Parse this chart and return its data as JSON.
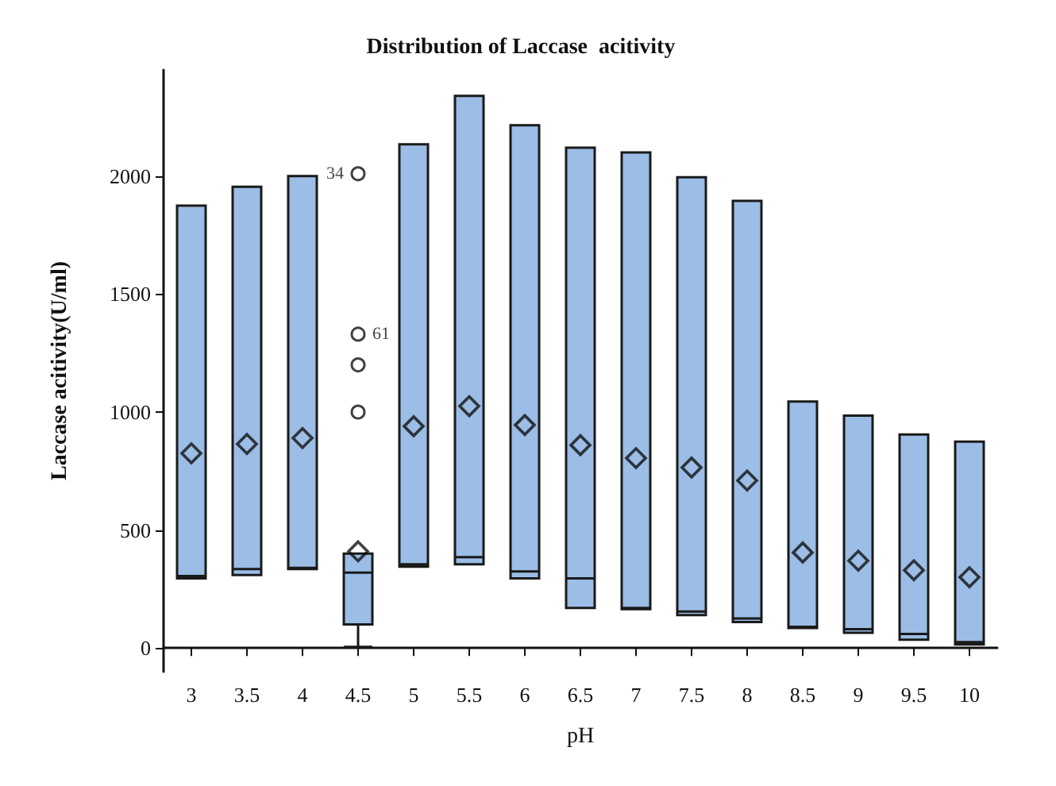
{
  "chart_data": {
    "type": "box",
    "title": "Distribution of Laccase  acitivity",
    "xlabel": "pH",
    "ylabel": "Laccase acitivity(U/ml)",
    "categories": [
      "3",
      "3.5",
      "4",
      "4.5",
      "5",
      "5.5",
      "6",
      "6.5",
      "7",
      "7.5",
      "8",
      "8.5",
      "9",
      "9.5",
      "10"
    ],
    "color": "#9bbde6",
    "marker": "diamond",
    "grid": false,
    "legend": false,
    "ylim": [
      -100,
      2450
    ],
    "yticks": [
      0,
      500,
      1000,
      1500,
      2000
    ],
    "boxes": [
      {
        "low": 295,
        "q1": 295,
        "median": 305,
        "q3": 1875,
        "high": 1875,
        "mean": 825
      },
      {
        "low": 310,
        "q1": 310,
        "median": 335,
        "q3": 1955,
        "high": 1955,
        "mean": 865
      },
      {
        "low": 335,
        "q1": 335,
        "median": 340,
        "q3": 2000,
        "high": 2000,
        "mean": 890
      },
      {
        "low": 5,
        "q1": 100,
        "median": 320,
        "q3": 400,
        "high": 400,
        "mean": 410,
        "outliers": [
          1000,
          1200,
          1330,
          2010
        ]
      },
      {
        "low": 345,
        "q1": 345,
        "median": 355,
        "q3": 2135,
        "high": 2135,
        "mean": 940
      },
      {
        "low": 355,
        "q1": 355,
        "median": 385,
        "q3": 2340,
        "high": 2340,
        "mean": 1025
      },
      {
        "low": 295,
        "q1": 295,
        "median": 325,
        "q3": 2215,
        "high": 2215,
        "mean": 945
      },
      {
        "low": 170,
        "q1": 170,
        "median": 295,
        "q3": 2120,
        "high": 2120,
        "mean": 860
      },
      {
        "low": 165,
        "q1": 165,
        "median": 170,
        "q3": 2100,
        "high": 2100,
        "mean": 805
      },
      {
        "low": 140,
        "q1": 140,
        "median": 155,
        "q3": 1995,
        "high": 1995,
        "mean": 765
      },
      {
        "low": 110,
        "q1": 110,
        "median": 125,
        "q3": 1895,
        "high": 1895,
        "mean": 710
      },
      {
        "low": 85,
        "q1": 85,
        "median": 90,
        "q3": 1045,
        "high": 1045,
        "mean": 405
      },
      {
        "low": 65,
        "q1": 65,
        "median": 80,
        "q3": 985,
        "high": 985,
        "mean": 370
      },
      {
        "low": 35,
        "q1": 35,
        "median": 60,
        "q3": 905,
        "high": 905,
        "mean": 330
      },
      {
        "low": 15,
        "q1": 15,
        "median": 25,
        "q3": 875,
        "high": 875,
        "mean": 300
      }
    ],
    "annotations": [
      "34",
      "61"
    ]
  }
}
